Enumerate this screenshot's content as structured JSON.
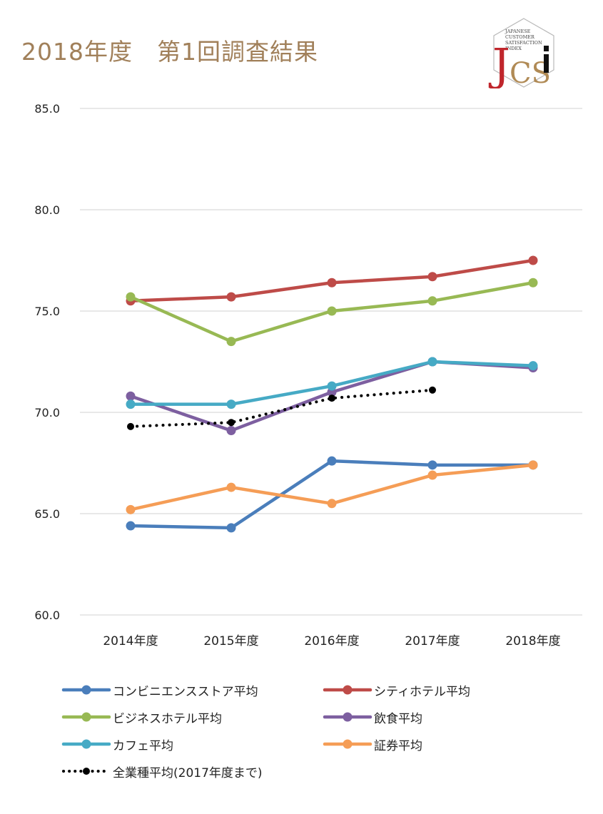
{
  "page": {
    "title": "2018年度　第1回調査結果"
  },
  "logo": {
    "text_lines": [
      "JAPANESE",
      "CUSTOMER",
      "SATISFACTION",
      "INDEX"
    ],
    "letters": "JCSi",
    "colors": {
      "j": "#c0262c",
      "cs": "#b08a55",
      "i": "#111111",
      "frame": "#b9b9b9"
    }
  },
  "chart_data": {
    "type": "line",
    "title": "",
    "xlabel": "",
    "ylabel": "",
    "categories": [
      "2014年度",
      "2015年度",
      "2016年度",
      "2017年度",
      "2018年度"
    ],
    "ylim": [
      60,
      85
    ],
    "yticks": [
      "60.0",
      "65.0",
      "70.0",
      "75.0",
      "80.0",
      "85.0"
    ],
    "grid": true,
    "legend_position": "bottom",
    "series": [
      {
        "name": "コンビニエンスストア平均",
        "color": "#4a7ebb",
        "style": "solid",
        "values": [
          64.4,
          64.3,
          67.6,
          67.4,
          67.4
        ]
      },
      {
        "name": "シティホテル平均",
        "color": "#be4b48",
        "style": "solid",
        "values": [
          75.5,
          75.7,
          76.4,
          76.7,
          77.5
        ]
      },
      {
        "name": "ビジネスホテル平均",
        "color": "#98b954",
        "style": "solid",
        "values": [
          75.7,
          73.5,
          75.0,
          75.5,
          76.4
        ]
      },
      {
        "name": "飲食平均",
        "color": "#7d5fa0",
        "style": "solid",
        "values": [
          70.8,
          69.1,
          71.0,
          72.5,
          72.2
        ]
      },
      {
        "name": "カフェ平均",
        "color": "#46aac5",
        "style": "solid",
        "values": [
          70.4,
          70.4,
          71.3,
          72.5,
          72.3
        ]
      },
      {
        "name": "証券平均",
        "color": "#f59d56",
        "style": "solid",
        "values": [
          65.2,
          66.3,
          65.5,
          66.9,
          67.4
        ]
      },
      {
        "name": "全業種平均(2017年度まで)",
        "color": "#000000",
        "style": "dotted",
        "values": [
          69.3,
          69.5,
          70.7,
          71.1,
          null
        ]
      }
    ]
  }
}
